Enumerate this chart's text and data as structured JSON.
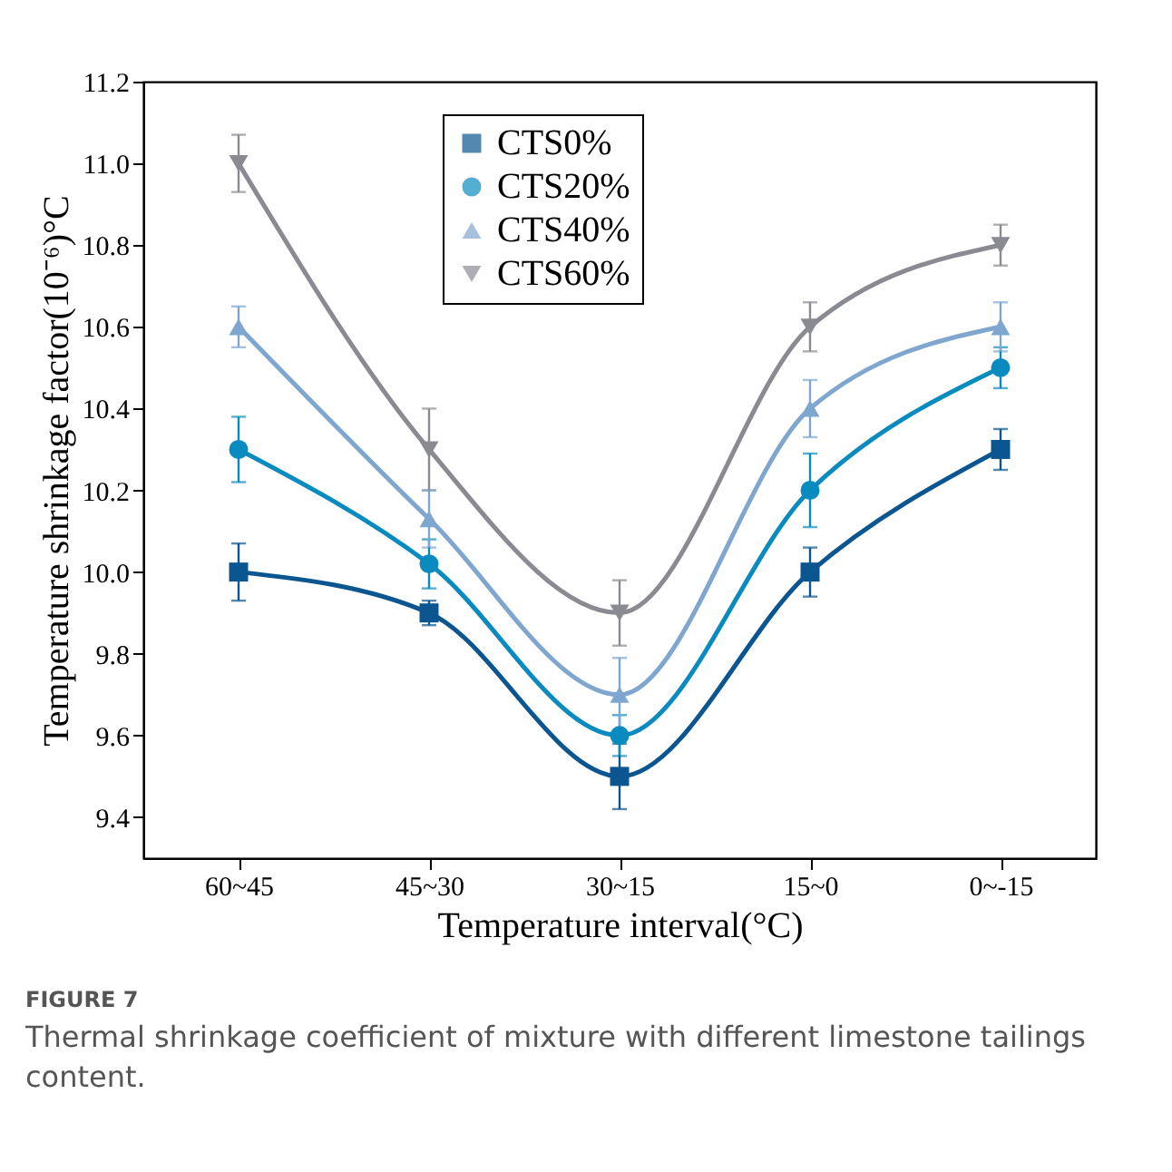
{
  "chart_data": {
    "type": "line",
    "xlabel": "Temperature interval(°C)",
    "ylabel": "Temperature shrinkage factor(10⁻⁶)°C",
    "categories": [
      "60~45",
      "45~30",
      "30~15",
      "15~0",
      "0~-15"
    ],
    "ylim": [
      9.3,
      11.2
    ],
    "yticks": [
      9.4,
      9.6,
      9.8,
      {
        "value": 10,
        "label": "10.0"
      },
      10.2,
      10.4,
      10.6,
      10.8,
      {
        "value": 11,
        "label": "11.0"
      },
      11.2
    ],
    "grid": false,
    "legend": "top",
    "line_style": "solid",
    "series": [
      {
        "name": "CTS0%",
        "color": "#0b5590",
        "marker": "square",
        "values": [
          10.0,
          9.9,
          9.5,
          10.0,
          10.3
        ],
        "errors": [
          0.07,
          0.03,
          0.08,
          0.06,
          0.05
        ]
      },
      {
        "name": "CTS20%",
        "color": "#0a8bbf",
        "marker": "circle",
        "values": [
          10.3,
          10.02,
          9.6,
          10.2,
          10.5
        ],
        "errors": [
          0.08,
          0.06,
          0.05,
          0.09,
          0.05
        ]
      },
      {
        "name": "CTS40%",
        "color": "#7fa6cf",
        "marker": "triangle",
        "values": [
          10.6,
          10.13,
          9.7,
          10.4,
          10.6
        ],
        "errors": [
          0.05,
          0.07,
          0.09,
          0.07,
          0.06
        ]
      },
      {
        "name": "CTS60%",
        "color": "#8a8a93",
        "marker": "triangle-down",
        "values": [
          11.0,
          10.3,
          9.9,
          10.6,
          10.8
        ],
        "errors": [
          0.07,
          0.1,
          0.08,
          0.06,
          0.05
        ]
      }
    ],
    "annotations": [
      "FIGURE 7",
      "Thermal shrinkage coefficient of mixture with different limestone tailings content."
    ]
  }
}
